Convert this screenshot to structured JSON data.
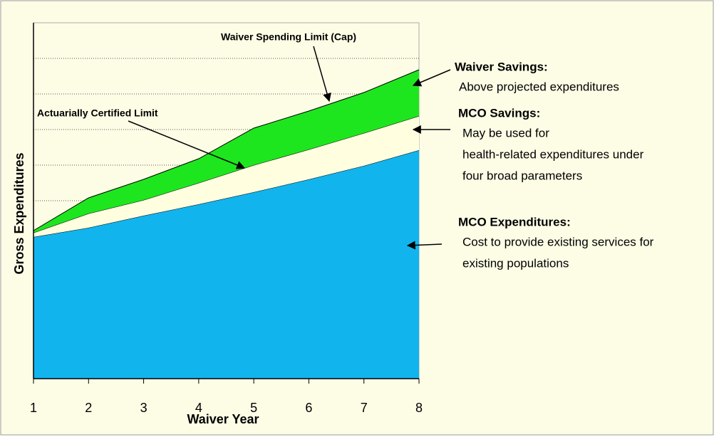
{
  "chart_data": {
    "type": "stacked_area",
    "x_label": "Waiver Year",
    "y_label": "Gross Expenditures",
    "x": [
      1,
      2,
      3,
      4,
      5,
      6,
      7,
      8
    ],
    "xlim": [
      1,
      8
    ],
    "xticks": [
      1,
      2,
      3,
      4,
      5,
      6,
      7,
      8
    ],
    "ylim": [
      0,
      10
    ],
    "ygrid": [
      5,
      6,
      7,
      8,
      9
    ],
    "series": [
      {
        "name": "MCO Expenditures:",
        "color": "#12b4ee",
        "description": [
          "Cost to provide existing services for",
          "existing populations"
        ],
        "values": [
          3.98,
          4.24,
          4.58,
          4.9,
          5.24,
          5.6,
          5.98,
          6.42
        ]
      },
      {
        "name": "MCO Savings:",
        "color": "#ffffe0",
        "description": [
          "May be used for",
          "health-related expenditures under",
          "four  broad parameters"
        ],
        "values": [
          0.12,
          0.4,
          0.44,
          0.6,
          0.76,
          0.84,
          0.92,
          0.96
        ]
      },
      {
        "name": "Waiver Savings:",
        "color": "#1ee61e",
        "description": [
          "Above projected expenditures"
        ],
        "values": [
          0.06,
          0.44,
          0.58,
          0.68,
          1.04,
          1.08,
          1.14,
          1.3
        ]
      }
    ],
    "annotations": [
      "Waiver Spending Limit (Cap)",
      "Actuarially Certified Limit"
    ]
  }
}
